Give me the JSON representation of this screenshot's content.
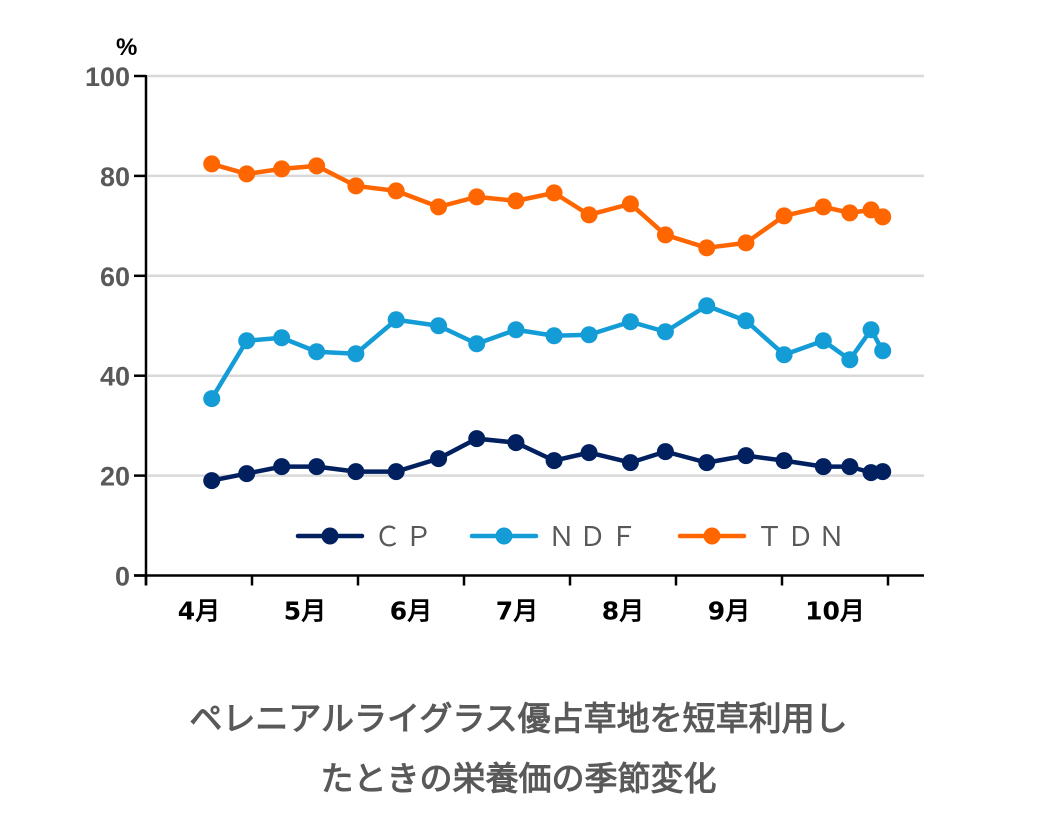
{
  "chart_data": {
    "type": "line",
    "title": "",
    "ylabel": "%",
    "xlabel": "",
    "ylim": [
      0,
      100
    ],
    "yticks": [
      0,
      20,
      40,
      60,
      80,
      100
    ],
    "grid": true,
    "legend_position": "bottom-center",
    "month_labels": [
      "4月",
      "5月",
      "6月",
      "7月",
      "8月",
      "9月",
      "10月"
    ],
    "x_note": "x values are month positions: 0 = start of April, 1 = start of May, ... 7 = end of October",
    "x": [
      0.62,
      0.95,
      1.28,
      1.61,
      1.98,
      2.36,
      2.76,
      3.12,
      3.49,
      3.85,
      4.18,
      4.57,
      4.9,
      5.29,
      5.66,
      6.02,
      6.39,
      6.64,
      6.84,
      6.95
    ],
    "series": [
      {
        "name": "ＣＰ",
        "color": "#002060",
        "values": [
          19.0,
          20.4,
          21.8,
          21.8,
          20.8,
          20.8,
          23.4,
          27.4,
          26.6,
          23.0,
          24.6,
          22.6,
          24.8,
          22.6,
          24.0,
          23.0,
          21.8,
          21.8,
          20.6,
          20.8
        ]
      },
      {
        "name": "ＮＤＦ",
        "color": "#149CD7",
        "values": [
          35.4,
          47.0,
          47.6,
          44.8,
          44.4,
          51.2,
          50.0,
          46.4,
          49.2,
          48.0,
          48.2,
          50.8,
          48.8,
          54.0,
          51.0,
          44.2,
          47.0,
          43.2,
          49.2,
          45.0
        ]
      },
      {
        "name": "ＴＤＮ",
        "color": "#FF6600",
        "values": [
          82.4,
          80.4,
          81.4,
          82.0,
          78.0,
          77.0,
          73.8,
          75.8,
          75.0,
          76.6,
          72.2,
          74.4,
          68.2,
          65.6,
          66.6,
          72.0,
          73.8,
          72.6,
          73.2,
          71.8
        ]
      }
    ]
  },
  "caption": {
    "line1": "ペレニアルライグラス優占草地を短草利用し",
    "line2": "たときの栄養価の季節変化"
  }
}
